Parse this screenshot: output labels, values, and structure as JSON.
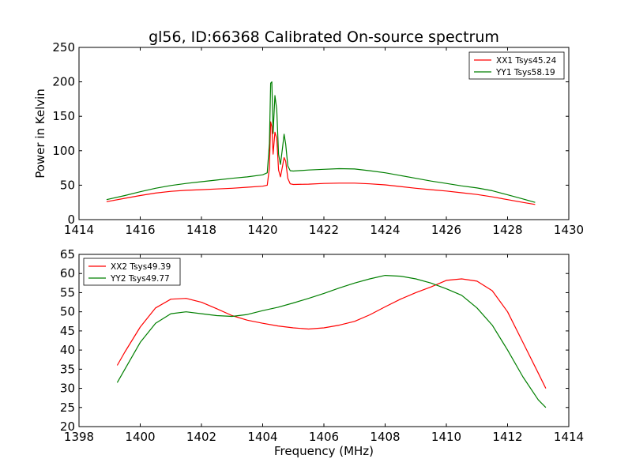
{
  "title": "gl56, ID:66368 Calibrated On-source spectrum",
  "colors": {
    "red": "#ff0000",
    "green": "#007f00"
  },
  "chart_data": [
    {
      "type": "line",
      "xlabel": "",
      "ylabel": "Power in Kelvin",
      "xlim": [
        1414,
        1430
      ],
      "ylim": [
        0,
        250
      ],
      "xticks": [
        "1414",
        "1416",
        "1418",
        "1420",
        "1422",
        "1424",
        "1426",
        "1428",
        "1430"
      ],
      "yticks": [
        "0",
        "50",
        "100",
        "150",
        "200",
        "250"
      ],
      "legend_position": "top-right",
      "grid": false,
      "series": [
        {
          "name": "XX1 Tsys45.24",
          "color": "#ff0000",
          "points": [
            [
              14.9,
              26
            ],
            [
              15.5,
              31
            ],
            [
              16,
              35
            ],
            [
              16.5,
              38.5
            ],
            [
              17,
              41
            ],
            [
              17.5,
              42.5
            ],
            [
              18,
              43.5
            ],
            [
              18.5,
              44.5
            ],
            [
              19,
              45.5
            ],
            [
              19.5,
              47
            ],
            [
              20,
              48.5
            ],
            [
              20.15,
              50
            ],
            [
              20.22,
              75
            ],
            [
              20.26,
              142
            ],
            [
              20.3,
              135
            ],
            [
              20.34,
              95
            ],
            [
              20.4,
              127
            ],
            [
              20.46,
              118
            ],
            [
              20.52,
              72
            ],
            [
              20.58,
              62
            ],
            [
              20.65,
              78
            ],
            [
              20.7,
              90
            ],
            [
              20.75,
              85
            ],
            [
              20.82,
              60
            ],
            [
              20.9,
              52
            ],
            [
              21,
              51
            ],
            [
              21.5,
              51.5
            ],
            [
              22,
              52.5
            ],
            [
              22.5,
              53
            ],
            [
              23,
              53
            ],
            [
              23.5,
              52
            ],
            [
              24,
              50.5
            ],
            [
              24.5,
              48
            ],
            [
              25,
              45.5
            ],
            [
              25.5,
              43.5
            ],
            [
              26,
              41.5
            ],
            [
              26.5,
              39
            ],
            [
              27,
              36.5
            ],
            [
              27.5,
              33
            ],
            [
              28,
              29
            ],
            [
              28.5,
              25
            ],
            [
              28.9,
              22
            ]
          ]
        },
        {
          "name": "YY1 Tsys58.19",
          "color": "#007f00",
          "points": [
            [
              14.9,
              29
            ],
            [
              15.5,
              35
            ],
            [
              16,
              40.5
            ],
            [
              16.5,
              45.5
            ],
            [
              17,
              49.5
            ],
            [
              17.5,
              52.5
            ],
            [
              18,
              55
            ],
            [
              18.5,
              57.5
            ],
            [
              19,
              60
            ],
            [
              19.5,
              62
            ],
            [
              20,
              65
            ],
            [
              20.15,
              68
            ],
            [
              20.22,
              110
            ],
            [
              20.26,
              198
            ],
            [
              20.3,
              200
            ],
            [
              20.34,
              125
            ],
            [
              20.4,
              180
            ],
            [
              20.46,
              160
            ],
            [
              20.52,
              95
            ],
            [
              20.58,
              80
            ],
            [
              20.65,
              105
            ],
            [
              20.7,
              124
            ],
            [
              20.75,
              110
            ],
            [
              20.82,
              78
            ],
            [
              20.9,
              71
            ],
            [
              21,
              70.5
            ],
            [
              21.5,
              72
            ],
            [
              22,
              73
            ],
            [
              22.5,
              74
            ],
            [
              23,
              73.5
            ],
            [
              23.5,
              71
            ],
            [
              24,
              68
            ],
            [
              24.5,
              64
            ],
            [
              25,
              60
            ],
            [
              25.5,
              56
            ],
            [
              26,
              52.5
            ],
            [
              26.5,
              49
            ],
            [
              27,
              46
            ],
            [
              27.5,
              42
            ],
            [
              28,
              36
            ],
            [
              28.5,
              30
            ],
            [
              28.9,
              25
            ]
          ]
        }
      ]
    },
    {
      "type": "line",
      "xlabel": "Frequency (MHz)",
      "ylabel": "",
      "xlim": [
        1398,
        1414
      ],
      "ylim": [
        20,
        65
      ],
      "xticks": [
        "1398",
        "1400",
        "1402",
        "1404",
        "1406",
        "1408",
        "1410",
        "1412",
        "1414"
      ],
      "yticks": [
        "20",
        "25",
        "30",
        "35",
        "40",
        "45",
        "50",
        "55",
        "60",
        "65"
      ],
      "legend_position": "top-left",
      "grid": false,
      "series": [
        {
          "name": "XX2 Tsys49.39",
          "color": "#ff0000",
          "points": [
            [
              1399.25,
              36
            ],
            [
              1399.5,
              39.5
            ],
            [
              1400,
              46
            ],
            [
              1400.5,
              51
            ],
            [
              1401,
              53.3
            ],
            [
              1401.5,
              53.5
            ],
            [
              1402,
              52.5
            ],
            [
              1402.5,
              50.8
            ],
            [
              1403,
              49
            ],
            [
              1403.5,
              47.8
            ],
            [
              1404,
              47
            ],
            [
              1404.5,
              46.3
            ],
            [
              1405,
              45.8
            ],
            [
              1405.5,
              45.5
            ],
            [
              1406,
              45.8
            ],
            [
              1406.5,
              46.5
            ],
            [
              1407,
              47.5
            ],
            [
              1407.5,
              49.2
            ],
            [
              1408,
              51.3
            ],
            [
              1408.5,
              53.3
            ],
            [
              1409,
              55
            ],
            [
              1409.5,
              56.5
            ],
            [
              1410,
              58.2
            ],
            [
              1410.5,
              58.6
            ],
            [
              1411,
              58
            ],
            [
              1411.5,
              55.5
            ],
            [
              1412,
              50
            ],
            [
              1412.5,
              42
            ],
            [
              1413,
              34
            ],
            [
              1413.25,
              30
            ]
          ]
        },
        {
          "name": "YY2 Tsys49.77",
          "color": "#007f00",
          "points": [
            [
              1399.25,
              31.5
            ],
            [
              1399.5,
              35
            ],
            [
              1400,
              42
            ],
            [
              1400.5,
              47
            ],
            [
              1401,
              49.5
            ],
            [
              1401.5,
              50
            ],
            [
              1402,
              49.5
            ],
            [
              1402.5,
              49
            ],
            [
              1403,
              48.8
            ],
            [
              1403.5,
              49.3
            ],
            [
              1404,
              50.3
            ],
            [
              1404.5,
              51.2
            ],
            [
              1405,
              52.3
            ],
            [
              1405.5,
              53.5
            ],
            [
              1406,
              54.8
            ],
            [
              1406.5,
              56.2
            ],
            [
              1407,
              57.5
            ],
            [
              1407.5,
              58.6
            ],
            [
              1408,
              59.5
            ],
            [
              1408.5,
              59.3
            ],
            [
              1409,
              58.6
            ],
            [
              1409.5,
              57.5
            ],
            [
              1410,
              56
            ],
            [
              1410.5,
              54.3
            ],
            [
              1411,
              51
            ],
            [
              1411.5,
              46.5
            ],
            [
              1412,
              40
            ],
            [
              1412.5,
              33
            ],
            [
              1413,
              27
            ],
            [
              1413.25,
              25
            ]
          ]
        }
      ]
    }
  ]
}
